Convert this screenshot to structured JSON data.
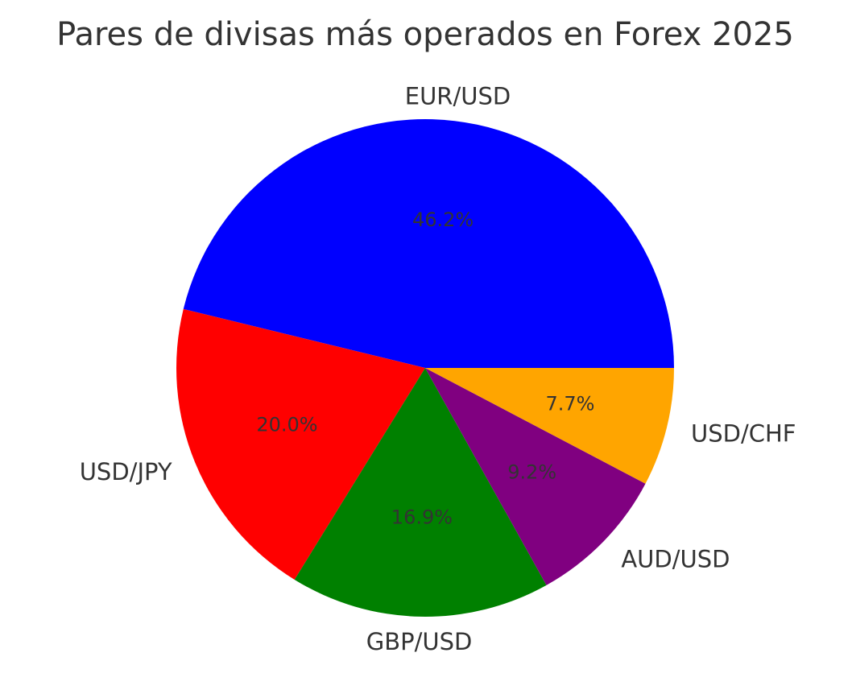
{
  "chart_data": {
    "type": "pie",
    "title": "Pares de divisas más operados en Forex 2025",
    "start_angle_deg": 0,
    "direction": "counterclockwise",
    "slices": [
      {
        "label": "EUR/USD",
        "value": 46.2,
        "pct_text": "46.2%",
        "color": "#0000ff"
      },
      {
        "label": "USD/JPY",
        "value": 20.0,
        "pct_text": "20.0%",
        "color": "#ff0000"
      },
      {
        "label": "GBP/USD",
        "value": 16.9,
        "pct_text": "16.9%",
        "color": "#008000"
      },
      {
        "label": "AUD/USD",
        "value": 9.2,
        "pct_text": "9.2%",
        "color": "#800080"
      },
      {
        "label": "USD/CHF",
        "value": 7.7,
        "pct_text": "7.7%",
        "color": "#ffa500"
      }
    ]
  }
}
